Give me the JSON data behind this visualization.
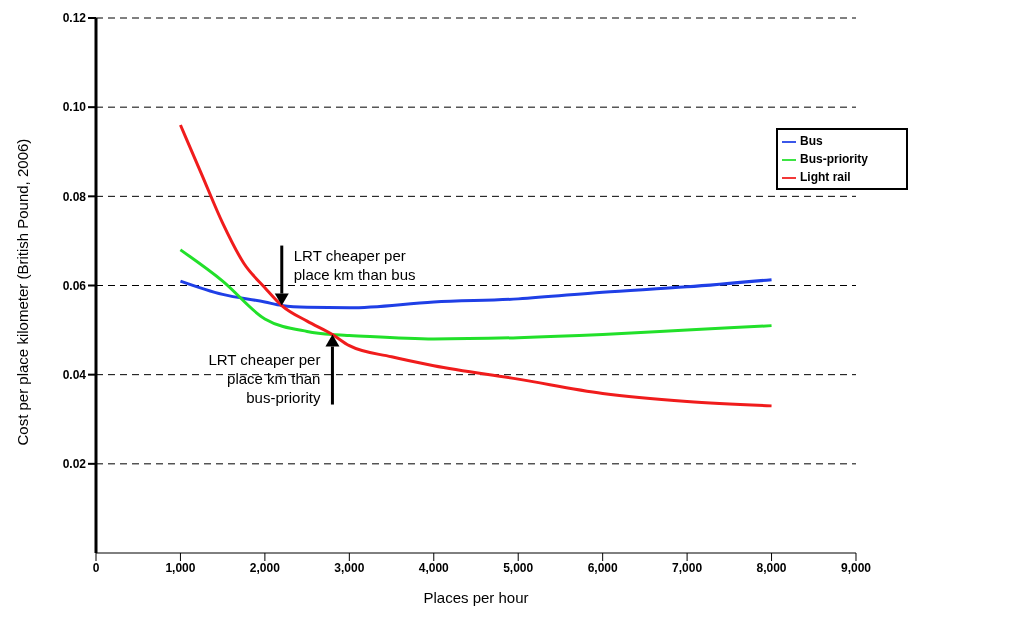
{
  "chart_data": {
    "type": "line",
    "xlabel": "Places per hour",
    "ylabel": "Cost per place kilometer (British Pound, 2006)",
    "series": [
      {
        "name": "Bus",
        "color": "#1f3fe6",
        "x": [
          1000,
          1500,
          2000,
          2200,
          2500,
          3000,
          4000,
          5000,
          6000,
          7000,
          8000
        ],
        "values": [
          0.061,
          0.058,
          0.0563,
          0.0555,
          0.0551,
          0.055,
          0.0563,
          0.057,
          0.0585,
          0.0597,
          0.0613
        ]
      },
      {
        "name": "Bus-priority",
        "color": "#22e02a",
        "x": [
          1000,
          1500,
          2000,
          2500,
          2800,
          3000,
          4000,
          5000,
          6000,
          7000,
          8000
        ],
        "values": [
          0.068,
          0.061,
          0.0525,
          0.0497,
          0.049,
          0.0488,
          0.048,
          0.0483,
          0.049,
          0.05,
          0.051
        ]
      },
      {
        "name": "Light rail",
        "color": "#f01c1c",
        "x": [
          1000,
          1250,
          1500,
          1750,
          2000,
          2200,
          2500,
          2800,
          3000,
          3500,
          4000,
          5000,
          6000,
          7000,
          8000
        ],
        "values": [
          0.096,
          0.085,
          0.074,
          0.065,
          0.0595,
          0.0555,
          0.052,
          0.049,
          0.0465,
          0.044,
          0.042,
          0.039,
          0.0358,
          0.034,
          0.033
        ]
      }
    ],
    "xlim": [
      0,
      9000
    ],
    "xticks": [
      0,
      {
        "value": 1000,
        "label": "1,000"
      },
      {
        "value": 2000,
        "label": "2,000"
      },
      {
        "value": 3000,
        "label": "3,000"
      },
      {
        "value": 4000,
        "label": "4,000"
      },
      {
        "value": 5000,
        "label": "5,000"
      },
      {
        "value": 6000,
        "label": "6,000"
      },
      {
        "value": 7000,
        "label": "7,000"
      },
      {
        "value": 8000,
        "label": "8,000"
      },
      {
        "value": 9000,
        "label": "9,000"
      }
    ],
    "ylim": [
      0,
      0.12
    ],
    "yticks": [
      0.02,
      0.04,
      0.06,
      0.08,
      {
        "value": 0.1,
        "label": "0.10"
      },
      0.12
    ],
    "grid": "y",
    "legend": "top right",
    "annotations": [
      {
        "text": "LRT cheaper per place km than bus",
        "x": 2200,
        "y": 0.0555
      },
      {
        "text": "LRT cheaper per place km than bus-priority",
        "x": 2800,
        "y": 0.049
      }
    ]
  }
}
